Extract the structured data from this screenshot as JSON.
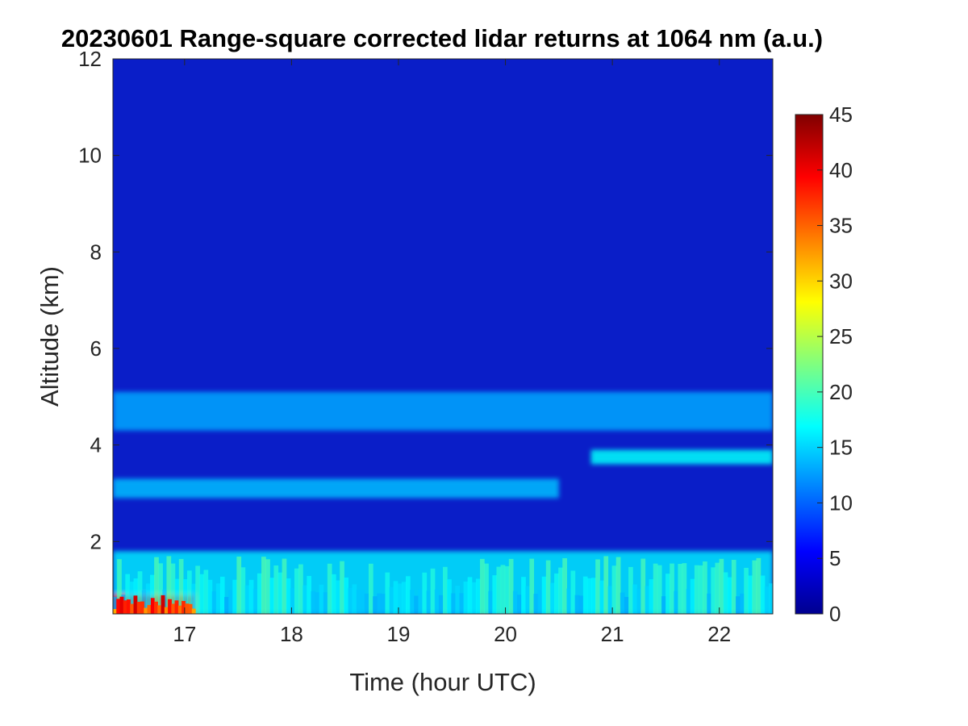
{
  "chart_data": {
    "type": "heatmap",
    "title": "20230601  Range-square corrected lidar returns at 1064 nm (a.u.)",
    "xlabel": "Time (hour UTC)",
    "ylabel": "Altitude (km)",
    "x_range": [
      16.33,
      22.5
    ],
    "y_range": [
      0.5,
      12
    ],
    "x_ticks": [
      17,
      18,
      19,
      20,
      21,
      22
    ],
    "y_ticks": [
      2,
      4,
      6,
      8,
      10,
      12
    ],
    "colorbar": {
      "range": [
        0,
        45
      ],
      "ticks": [
        0,
        5,
        10,
        15,
        20,
        25,
        30,
        35,
        40,
        45
      ],
      "colormap": "jet"
    },
    "features": [
      {
        "name": "aerosol boundary layer",
        "time_range": [
          16.33,
          22.5
        ],
        "altitude_range": [
          0.5,
          1.8
        ],
        "typical_value": 16,
        "max_value": 40
      },
      {
        "name": "near-surface hot spot",
        "time_range": [
          16.33,
          17.1
        ],
        "altitude_range": [
          0.5,
          0.9
        ],
        "typical_value": 38
      },
      {
        "name": "elevated layer 1",
        "time_range": [
          16.33,
          20.5
        ],
        "altitude_range": [
          2.9,
          3.3
        ],
        "typical_value": 14
      },
      {
        "name": "elevated layer 2",
        "time_range": [
          20.8,
          22.5
        ],
        "altitude_range": [
          3.6,
          3.9
        ],
        "typical_value": 17
      },
      {
        "name": "elevated layer 3",
        "time_range": [
          16.33,
          22.5
        ],
        "altitude_range": [
          4.3,
          5.1
        ],
        "typical_value": 13
      }
    ]
  }
}
